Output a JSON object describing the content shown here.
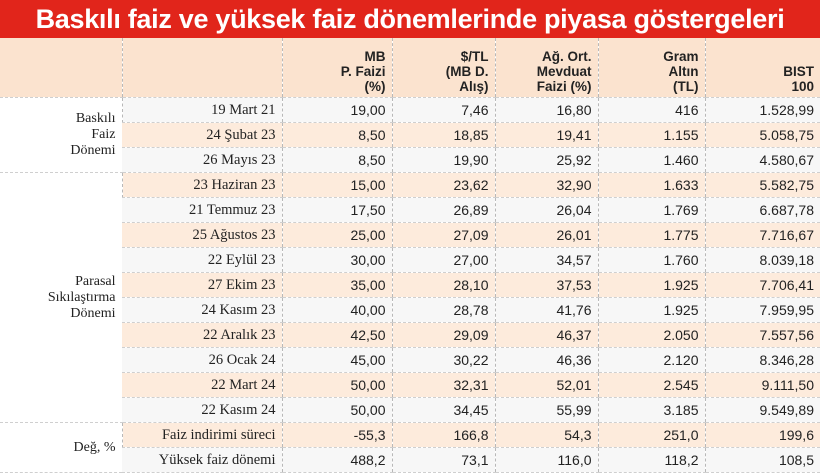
{
  "title": "Baskılı faiz ve yüksek faiz dönemlerinde piyasa göstergeleri",
  "columns": [
    {
      "lines": [
        "MB",
        "P. Faizi",
        "(%)"
      ]
    },
    {
      "lines": [
        "$/TL",
        "(MB D.",
        "Alış)"
      ]
    },
    {
      "lines": [
        "Ağ. Ort.",
        "Mevduat",
        "Faizi (%)"
      ]
    },
    {
      "lines": [
        "Gram",
        "Altın",
        "(TL)"
      ]
    },
    {
      "lines": [
        "BIST",
        "100"
      ]
    }
  ],
  "groups": [
    {
      "lines": [
        "Baskılı",
        "Faiz",
        "Dönemi"
      ],
      "rows": [
        {
          "label": "19 Mart 21",
          "cells": [
            "19,00",
            "7,46",
            "16,80",
            "416",
            "1.528,99"
          ]
        },
        {
          "label": "24 Şubat 23",
          "cells": [
            "8,50",
            "18,85",
            "19,41",
            "1.155",
            "5.058,75"
          ]
        },
        {
          "label": "26 Mayıs 23",
          "cells": [
            "8,50",
            "19,90",
            "25,92",
            "1.460",
            "4.580,67"
          ]
        }
      ]
    },
    {
      "lines": [
        "Parasal",
        "Sıkılaştırma",
        "Dönemi"
      ],
      "rows": [
        {
          "label": "23 Haziran 23",
          "cells": [
            "15,00",
            "23,62",
            "32,90",
            "1.633",
            "5.582,75"
          ]
        },
        {
          "label": "21 Temmuz 23",
          "cells": [
            "17,50",
            "26,89",
            "26,04",
            "1.769",
            "6.687,78"
          ]
        },
        {
          "label": "25 Ağustos 23",
          "cells": [
            "25,00",
            "27,09",
            "26,01",
            "1.775",
            "7.716,67"
          ]
        },
        {
          "label": "22 Eylül 23",
          "cells": [
            "30,00",
            "27,00",
            "34,57",
            "1.760",
            "8.039,18"
          ]
        },
        {
          "label": "27 Ekim 23",
          "cells": [
            "35,00",
            "28,10",
            "37,53",
            "1.925",
            "7.706,41"
          ]
        },
        {
          "label": "24 Kasım 23",
          "cells": [
            "40,00",
            "28,78",
            "41,76",
            "1.925",
            "7.959,95"
          ]
        },
        {
          "label": "22 Aralık 23",
          "cells": [
            "42,50",
            "29,09",
            "46,37",
            "2.050",
            "7.557,56"
          ]
        },
        {
          "label": "26 Ocak 24",
          "cells": [
            "45,00",
            "30,22",
            "46,36",
            "2.120",
            "8.346,28"
          ]
        },
        {
          "label": "22 Mart 24",
          "cells": [
            "50,00",
            "32,31",
            "52,01",
            "2.545",
            "9.111,50"
          ]
        },
        {
          "label": "22 Kasım 24",
          "cells": [
            "50,00",
            "34,45",
            "55,99",
            "3.185",
            "9.549,89"
          ]
        }
      ]
    },
    {
      "lines": [
        "Değ, %"
      ],
      "rows": [
        {
          "label": "Faiz indirimi süreci",
          "cells": [
            "-55,3",
            "166,8",
            "54,3",
            "251,0",
            "199,6"
          ]
        },
        {
          "label": "Yüksek faiz dönemi",
          "cells": [
            "488,2",
            "73,1",
            "116,0",
            "118,2",
            "108,5"
          ]
        }
      ]
    }
  ]
}
